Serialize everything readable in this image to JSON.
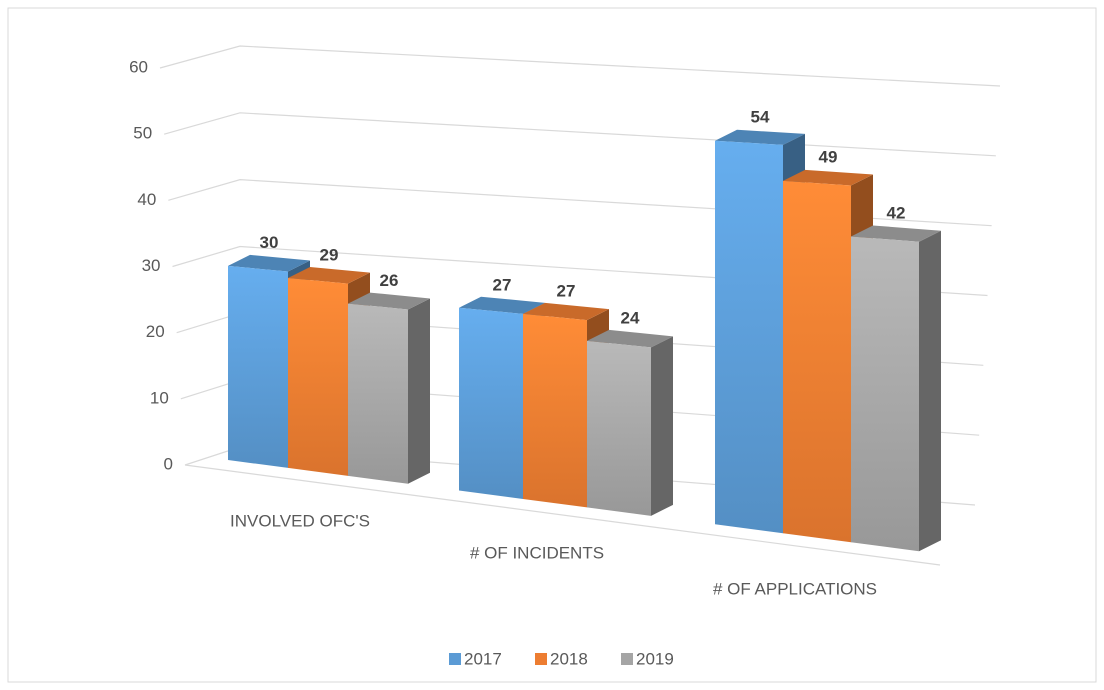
{
  "chart_data": {
    "type": "bar3d",
    "categories": [
      "INVOLVED OFC'S",
      "# OF INCIDENTS",
      "# OF APPLICATIONS"
    ],
    "series": [
      {
        "name": "2017",
        "color": "#5b9bd5",
        "values": [
          30,
          27,
          54
        ]
      },
      {
        "name": "2018",
        "color": "#ed7d31",
        "values": [
          29,
          27,
          49
        ]
      },
      {
        "name": "2019",
        "color": "#a5a5a5",
        "values": [
          26,
          24,
          42
        ]
      }
    ],
    "ylim": [
      0,
      60
    ],
    "yticks": [
      0,
      10,
      20,
      30,
      40,
      50,
      60
    ],
    "grid": true,
    "legend": "bottom"
  }
}
